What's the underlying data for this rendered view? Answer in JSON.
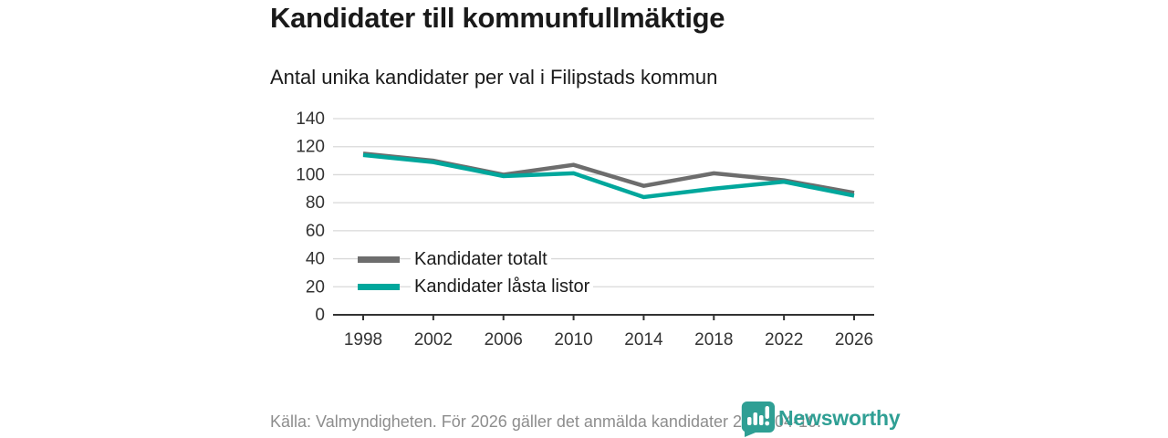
{
  "header": {
    "title": "Kandidater till kommunfullmäktige",
    "subtitle": "Antal unika kandidater per val i Filipstads kommun"
  },
  "chart_data": {
    "type": "line",
    "title": "Kandidater till kommunfullmäktige",
    "subtitle": "Antal unika kandidater per val i Filipstads kommun",
    "x": [
      1998,
      2002,
      2006,
      2010,
      2014,
      2018,
      2022,
      2026
    ],
    "series": [
      {
        "name": "Kandidater totalt",
        "color": "#6d6d6d",
        "values": [
          115,
          110,
          100,
          107,
          92,
          101,
          96,
          87
        ]
      },
      {
        "name": "Kandidater låsta listor",
        "color": "#00a79c",
        "values": [
          114,
          109,
          99,
          101,
          84,
          90,
          95,
          85
        ]
      }
    ],
    "xlabel": "",
    "ylabel": "",
    "ylim": [
      0,
      140
    ],
    "ytick_step": 20,
    "grid": "horizontal-only",
    "legend_position": "inside-lower-left"
  },
  "footer": {
    "source": "Källa: Valmyndigheten. För 2026 gäller det anmälda kandidater 2026-04-10.",
    "brand": "Newsworthy"
  },
  "colors": {
    "grid": "#d9d9d9",
    "axis": "#333333",
    "tick_text": "#333333",
    "title_text": "#1a1a1a",
    "footer_text": "#8d8d8d",
    "brand_teal": "#2f9f94",
    "series_total": "#6d6d6d",
    "series_locked": "#00a79c"
  }
}
